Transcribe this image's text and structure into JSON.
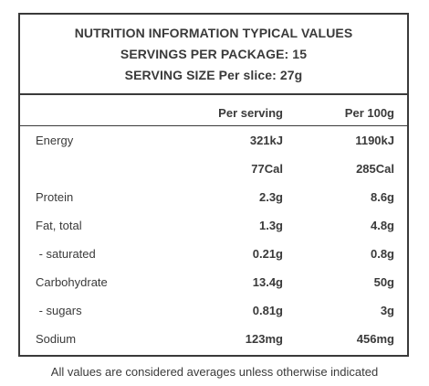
{
  "header": {
    "line1": "NUTRITION INFORMATION TYPICAL VALUES",
    "line2": "SERVINGS PER PACKAGE: 15",
    "line3": "SERVING SIZE Per slice: 27g"
  },
  "columns": {
    "per_serving": "Per serving",
    "per_100g": "Per 100g"
  },
  "rows": [
    {
      "label": "Energy",
      "per_serving": "321kJ",
      "per_100g": "1190kJ"
    },
    {
      "label": "",
      "per_serving": "77Cal",
      "per_100g": "285Cal"
    },
    {
      "label": "Protein",
      "per_serving": "2.3g",
      "per_100g": "8.6g"
    },
    {
      "label": "Fat, total",
      "per_serving": "1.3g",
      "per_100g": "4.8g"
    },
    {
      "label": " - saturated",
      "per_serving": "0.21g",
      "per_100g": "0.8g"
    },
    {
      "label": "Carbohydrate",
      "per_serving": "13.4g",
      "per_100g": "50g"
    },
    {
      "label": " - sugars",
      "per_serving": "0.81g",
      "per_100g": "3g"
    },
    {
      "label": "Sodium",
      "per_serving": "123mg",
      "per_100g": "456mg"
    }
  ],
  "footnote": "All values are considered averages unless otherwise indicated"
}
